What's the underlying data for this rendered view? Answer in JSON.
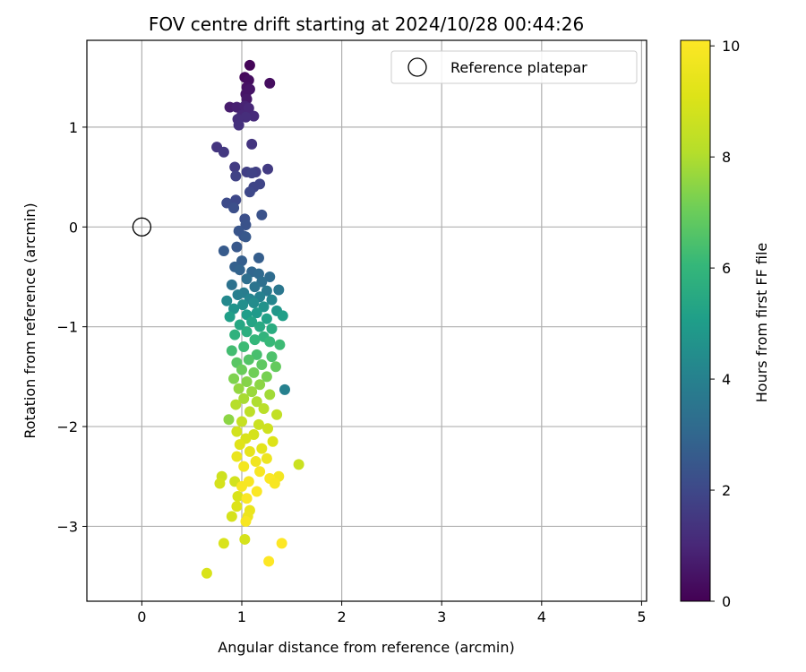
{
  "chart_data": {
    "type": "scatter",
    "title": "FOV centre drift starting at 2024/10/28 00:44:26",
    "xlabel": "Angular distance from reference (arcmin)",
    "ylabel": "Rotation from reference (arcmin)",
    "xlim": [
      -0.55,
      5.05
    ],
    "ylim": [
      -3.75,
      1.87
    ],
    "xticks": [
      0,
      1,
      2,
      3,
      4,
      5
    ],
    "yticks": [
      1,
      0,
      -1,
      -2,
      -3
    ],
    "grid": true,
    "legend": {
      "placement": "top-right",
      "entries": [
        "Reference platepar"
      ]
    },
    "reference_point": {
      "x": 0,
      "y": 0,
      "label": "Reference platepar"
    },
    "colorbar": {
      "label": "Hours from first FF file",
      "colormap": "viridis",
      "range": [
        0,
        10.1
      ],
      "ticks": [
        0,
        2,
        4,
        6,
        8,
        10
      ]
    },
    "series": [
      {
        "points": [
          [
            1.08,
            1.62,
            0.1
          ],
          [
            1.03,
            1.5,
            0.2
          ],
          [
            1.07,
            1.47,
            0.3
          ],
          [
            1.28,
            1.44,
            0.3
          ],
          [
            1.05,
            1.4,
            0.4
          ],
          [
            1.08,
            1.38,
            0.5
          ],
          [
            1.04,
            1.33,
            0.5
          ],
          [
            1.05,
            1.28,
            0.6
          ],
          [
            0.88,
            1.2,
            0.7
          ],
          [
            0.95,
            1.2,
            0.8
          ],
          [
            1.03,
            1.21,
            0.9
          ],
          [
            1.07,
            1.19,
            1.0
          ],
          [
            1.0,
            1.12,
            1.0
          ],
          [
            1.12,
            1.11,
            1.1
          ],
          [
            1.04,
            1.1,
            1.2
          ],
          [
            0.96,
            1.08,
            1.2
          ],
          [
            0.97,
            1.02,
            1.3
          ],
          [
            1.1,
            0.83,
            1.4
          ],
          [
            0.75,
            0.8,
            1.4
          ],
          [
            0.82,
            0.75,
            1.5
          ],
          [
            0.93,
            0.6,
            1.6
          ],
          [
            1.26,
            0.58,
            1.6
          ],
          [
            1.05,
            0.55,
            1.7
          ],
          [
            1.14,
            0.55,
            1.7
          ],
          [
            1.1,
            0.54,
            1.8
          ],
          [
            0.94,
            0.51,
            1.8
          ],
          [
            1.18,
            0.43,
            1.9
          ],
          [
            1.12,
            0.4,
            1.9
          ],
          [
            1.08,
            0.35,
            2.0
          ],
          [
            0.94,
            0.27,
            2.0
          ],
          [
            0.85,
            0.24,
            2.1
          ],
          [
            0.92,
            0.19,
            2.2
          ],
          [
            1.03,
            0.08,
            2.2
          ],
          [
            1.2,
            0.12,
            2.3
          ],
          [
            1.04,
            0.02,
            2.3
          ],
          [
            0.97,
            -0.04,
            2.4
          ],
          [
            1.02,
            -0.09,
            2.4
          ],
          [
            1.04,
            -0.1,
            2.5
          ],
          [
            0.95,
            -0.2,
            2.5
          ],
          [
            0.82,
            -0.24,
            2.6
          ],
          [
            1.17,
            -0.31,
            2.7
          ],
          [
            1.0,
            -0.34,
            2.7
          ],
          [
            0.93,
            -0.4,
            2.8
          ],
          [
            0.98,
            -0.43,
            2.9
          ],
          [
            1.1,
            -0.45,
            3.0
          ],
          [
            1.17,
            -0.47,
            3.1
          ],
          [
            1.28,
            -0.5,
            3.2
          ],
          [
            1.05,
            -0.52,
            3.3
          ],
          [
            1.2,
            -0.55,
            3.3
          ],
          [
            0.9,
            -0.58,
            3.4
          ],
          [
            1.13,
            -0.6,
            3.5
          ],
          [
            1.37,
            -0.63,
            3.6
          ],
          [
            1.25,
            -0.64,
            3.7
          ],
          [
            1.02,
            -0.66,
            3.8
          ],
          [
            0.96,
            -0.68,
            3.9
          ],
          [
            1.18,
            -0.7,
            4.0
          ],
          [
            1.08,
            -0.72,
            4.1
          ],
          [
            1.3,
            -0.73,
            4.2
          ],
          [
            0.85,
            -0.74,
            4.3
          ],
          [
            1.12,
            -0.76,
            4.4
          ],
          [
            1.01,
            -0.78,
            4.5
          ],
          [
            1.22,
            -0.8,
            4.6
          ],
          [
            0.92,
            -0.82,
            4.7
          ],
          [
            1.35,
            -0.84,
            4.8
          ],
          [
            1.15,
            -0.86,
            4.9
          ],
          [
            1.05,
            -0.88,
            5.0
          ],
          [
            1.41,
            -0.89,
            5.1
          ],
          [
            0.88,
            -0.9,
            5.1
          ],
          [
            1.25,
            -0.92,
            5.2
          ],
          [
            1.1,
            -0.95,
            5.3
          ],
          [
            0.98,
            -0.98,
            5.4
          ],
          [
            1.18,
            -1.0,
            5.5
          ],
          [
            1.3,
            -1.02,
            5.6
          ],
          [
            1.05,
            -1.05,
            5.7
          ],
          [
            0.93,
            -1.08,
            5.8
          ],
          [
            1.22,
            -1.1,
            5.9
          ],
          [
            1.13,
            -1.13,
            6.0
          ],
          [
            1.28,
            -1.15,
            6.1
          ],
          [
            1.38,
            -1.18,
            6.2
          ],
          [
            1.02,
            -1.2,
            6.2
          ],
          [
            0.9,
            -1.24,
            6.3
          ],
          [
            1.15,
            -1.28,
            6.4
          ],
          [
            1.3,
            -1.3,
            6.5
          ],
          [
            1.07,
            -1.33,
            6.6
          ],
          [
            0.95,
            -1.36,
            6.7
          ],
          [
            1.2,
            -1.38,
            6.8
          ],
          [
            1.34,
            -1.4,
            6.9
          ],
          [
            1.0,
            -1.43,
            7.0
          ],
          [
            1.12,
            -1.46,
            7.1
          ],
          [
            1.25,
            -1.5,
            7.2
          ],
          [
            0.92,
            -1.52,
            7.3
          ],
          [
            1.05,
            -1.55,
            7.4
          ],
          [
            1.18,
            -1.58,
            7.5
          ],
          [
            1.43,
            -1.63,
            4.0
          ],
          [
            0.97,
            -1.62,
            7.6
          ],
          [
            1.1,
            -1.65,
            7.7
          ],
          [
            1.28,
            -1.68,
            7.8
          ],
          [
            1.02,
            -1.72,
            7.9
          ],
          [
            1.15,
            -1.75,
            8.0
          ],
          [
            0.94,
            -1.78,
            8.1
          ],
          [
            1.22,
            -1.82,
            8.2
          ],
          [
            1.08,
            -1.85,
            8.3
          ],
          [
            1.35,
            -1.88,
            8.4
          ],
          [
            0.87,
            -1.93,
            7.5
          ],
          [
            1.0,
            -1.95,
            8.5
          ],
          [
            1.17,
            -1.98,
            8.6
          ],
          [
            1.26,
            -2.02,
            8.7
          ],
          [
            0.95,
            -2.05,
            8.8
          ],
          [
            1.12,
            -2.08,
            8.9
          ],
          [
            1.04,
            -2.12,
            9.0
          ],
          [
            1.31,
            -2.15,
            9.1
          ],
          [
            0.98,
            -2.18,
            9.2
          ],
          [
            1.2,
            -2.22,
            9.3
          ],
          [
            1.08,
            -2.25,
            9.4
          ],
          [
            0.95,
            -2.3,
            9.5
          ],
          [
            1.25,
            -2.32,
            9.6
          ],
          [
            1.14,
            -2.35,
            9.7
          ],
          [
            1.02,
            -2.4,
            9.8
          ],
          [
            1.57,
            -2.38,
            8.6
          ],
          [
            1.18,
            -2.45,
            9.9
          ],
          [
            0.8,
            -2.5,
            8.7
          ],
          [
            1.37,
            -2.5,
            9.8
          ],
          [
            1.28,
            -2.52,
            10.0
          ],
          [
            1.07,
            -2.55,
            9.9
          ],
          [
            0.93,
            -2.55,
            8.8
          ],
          [
            0.78,
            -2.57,
            8.9
          ],
          [
            1.33,
            -2.57,
            9.9
          ],
          [
            1.0,
            -2.6,
            9.9
          ],
          [
            1.15,
            -2.65,
            10.0
          ],
          [
            0.96,
            -2.7,
            9.0
          ],
          [
            1.05,
            -2.72,
            10.0
          ],
          [
            0.95,
            -2.8,
            9.1
          ],
          [
            1.08,
            -2.84,
            9.5
          ],
          [
            0.9,
            -2.9,
            8.9
          ],
          [
            1.06,
            -2.9,
            9.6
          ],
          [
            1.04,
            -2.95,
            9.9
          ],
          [
            0.82,
            -3.17,
            9.0
          ],
          [
            1.4,
            -3.17,
            10.1
          ],
          [
            1.03,
            -3.13,
            8.9
          ],
          [
            1.27,
            -3.35,
            10.1
          ],
          [
            0.65,
            -3.47,
            9.0
          ]
        ]
      }
    ]
  }
}
